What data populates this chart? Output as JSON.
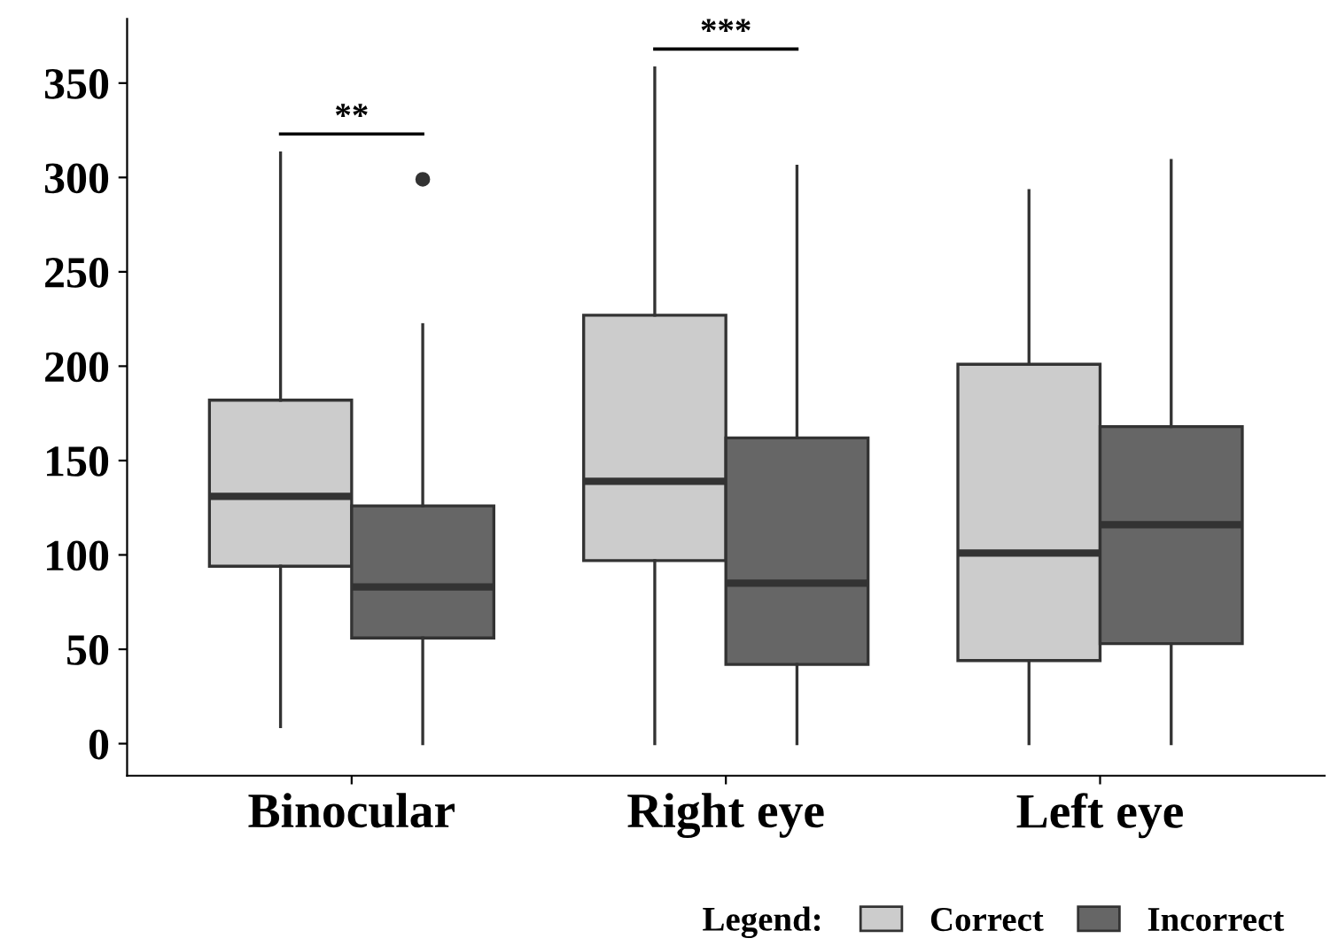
{
  "chart_data": {
    "type": "box",
    "categories": [
      "Binocular",
      "Right eye",
      "Left eye"
    ],
    "series": [
      {
        "name": "Correct",
        "color": "#cccccc",
        "boxes": [
          {
            "low": 9,
            "q1": 94,
            "median": 131,
            "q3": 182,
            "high": 313
          },
          {
            "low": 0,
            "q1": 97,
            "median": 139,
            "q3": 227,
            "high": 358
          },
          {
            "low": 0,
            "q1": 44,
            "median": 101,
            "q3": 201,
            "high": 293
          }
        ]
      },
      {
        "name": "Incorrect",
        "color": "#666666",
        "boxes": [
          {
            "low": 0,
            "q1": 56,
            "median": 83,
            "q3": 126,
            "high": 222,
            "outliers": [
              299
            ]
          },
          {
            "low": 0,
            "q1": 42,
            "median": 85,
            "q3": 162,
            "high": 306
          },
          {
            "low": 0,
            "q1": 53,
            "median": 116,
            "q3": 168,
            "high": 309
          }
        ]
      }
    ],
    "ylim": [
      -17,
      384
    ],
    "yticks": [
      0,
      50,
      100,
      150,
      200,
      250,
      300,
      350
    ],
    "annotations": [
      "**",
      "***"
    ],
    "legend_title": "Legend:",
    "legend": "bottom",
    "grid": false
  }
}
